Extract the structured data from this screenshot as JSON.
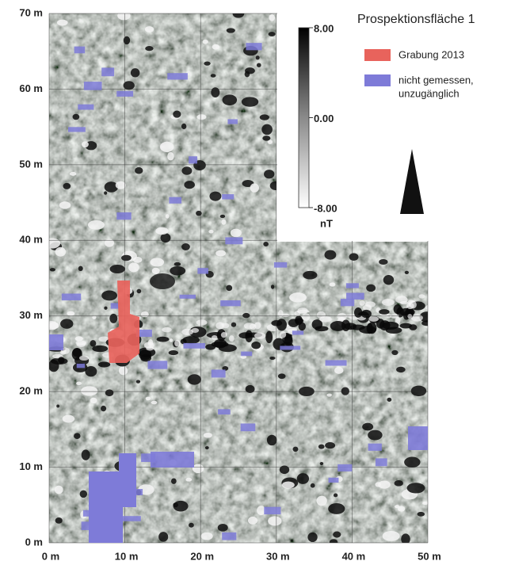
{
  "map": {
    "title": "Prospektionsfläche 1",
    "legend": [
      {
        "lines": [
          "Grabung 2013"
        ],
        "color": "#e8635c"
      },
      {
        "lines": [
          "nicht gemessen,",
          "unzugänglich"
        ],
        "color": "#7e7bd8"
      }
    ],
    "colorbar": {
      "ticks": [
        {
          "value": 8,
          "label": "8.00"
        },
        {
          "value": 0,
          "label": "0.00"
        },
        {
          "value": -8,
          "label": "-8.00"
        }
      ],
      "range": [
        -8,
        8
      ],
      "unit": "nT"
    },
    "xlim": [
      0,
      50
    ],
    "ylim": [
      0,
      70
    ],
    "xticks": [
      {
        "value": 0,
        "label": "0 m"
      },
      {
        "value": 10,
        "label": "10 m"
      },
      {
        "value": 20,
        "label": "20 m"
      },
      {
        "value": 30,
        "label": "30 m"
      },
      {
        "value": 40,
        "label": "40 m"
      },
      {
        "value": 50,
        "label": "50 m"
      }
    ],
    "yticks": [
      {
        "value": 0,
        "label": "0 m"
      },
      {
        "value": 10,
        "label": "10 m"
      },
      {
        "value": 20,
        "label": "20 m"
      },
      {
        "value": 30,
        "label": "30 m"
      },
      {
        "value": 40,
        "label": "40 m"
      },
      {
        "value": 50,
        "label": "50 m"
      },
      {
        "value": 60,
        "label": "60 m"
      },
      {
        "value": 70,
        "label": "70 m"
      }
    ]
  }
}
